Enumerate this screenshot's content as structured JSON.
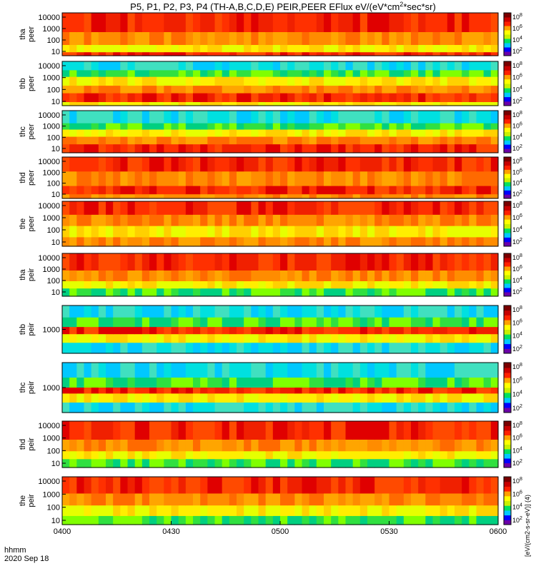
{
  "chart_data": {
    "type": "heatmap",
    "title": "P5, P1, P2, P3, P4 (TH-A,B,C,D,E) PEIR,PEER EFlux eV/(eV*cm^2*sec*sr)",
    "title_parts": {
      "before_sup": "P5, P1, P2, P3, P4 (TH-A,B,C,D,E) PEIR,PEER EFlux eV/(eV*cm",
      "sup": "2",
      "after_sup": "*sec*sr)"
    },
    "x_axis": {
      "label": "hhmm",
      "date": "2020 Sep 18",
      "ticks": [
        "0400",
        "0430",
        "0500",
        "0530",
        "0600"
      ],
      "range": [
        "04:00",
        "06:00"
      ]
    },
    "y_axis": {
      "scale": "log",
      "unit": "eV"
    },
    "colorbar": {
      "scale": "log",
      "ticks": [
        "10^2",
        "10^4",
        "10^6",
        "10^8"
      ],
      "colors": [
        "#6a00a8",
        "#0000ff",
        "#00c8ff",
        "#00e060",
        "#c8f000",
        "#ffff00",
        "#ffa000",
        "#ff2000",
        "#c80000",
        "#7a0000"
      ]
    },
    "colorbar_label": "[eV/(cm2-s-sr-eV)] (4)",
    "panels": [
      {
        "label1": "tha",
        "label2": "peer",
        "yticks": [
          "10000",
          "1000",
          "100",
          "10"
        ],
        "species": "electron",
        "description": "red/orange flux at all energies, yellow at low energy"
      },
      {
        "label1": "thb",
        "label2": "peer",
        "yticks": [
          "10000",
          "1000",
          "100",
          "10"
        ],
        "species": "electron",
        "description": "cyan noise at high energy, green/yellow mid, red band at low energy"
      },
      {
        "label1": "thc",
        "label2": "peer",
        "yticks": [
          "10000",
          "1000",
          "100",
          "10"
        ],
        "species": "electron",
        "description": "cyan noise at high energy, yellow/red at low energy"
      },
      {
        "label1": "thd",
        "label2": "peer",
        "yticks": [
          "10000",
          "1000",
          "100",
          "10"
        ],
        "species": "electron",
        "description": "orange/red flux throughout"
      },
      {
        "label1": "the",
        "label2": "peer",
        "yticks": [
          "10000",
          "1000",
          "100",
          "10"
        ],
        "species": "electron",
        "description": "red/orange with green-yellow patches early in interval"
      },
      {
        "label1": "tha",
        "label2": "peir",
        "yticks": [
          "10000",
          "1000",
          "100",
          "10"
        ],
        "species": "ion",
        "description": "red at high energy, green/blue speckle at low energy"
      },
      {
        "label1": "thb",
        "label2": "peir",
        "yticks": [
          "1000"
        ],
        "species": "ion",
        "description": "cyan/green with red band, change near 0447"
      },
      {
        "label1": "thc",
        "label2": "peir",
        "yticks": [
          "1000"
        ],
        "species": "ion",
        "description": "cyan/green with red band, change near 0447"
      },
      {
        "label1": "thd",
        "label2": "peir",
        "yticks": [
          "10000",
          "1000",
          "100",
          "10"
        ],
        "species": "ion",
        "description": "red at high energy, green/blue speckle at low energy"
      },
      {
        "label1": "the",
        "label2": "peir",
        "yticks": [
          "10000",
          "1000",
          "100",
          "10"
        ],
        "species": "ion",
        "description": "red at high energy, green patch early at low energy"
      }
    ]
  }
}
